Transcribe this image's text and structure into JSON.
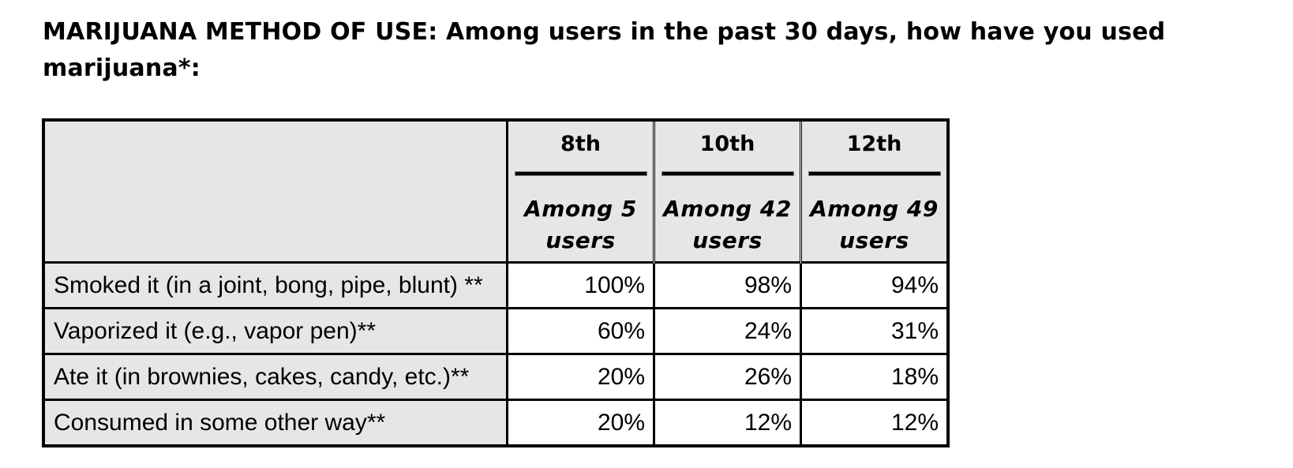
{
  "title": "MARIJUANA METHOD OF USE: Among users in the past 30 days, how have you used marijuana*:",
  "columns": [
    {
      "grade": "8th",
      "among_line1": "Among 5",
      "among_line2": "users"
    },
    {
      "grade": "10th",
      "among_line1": "Among 42",
      "among_line2": "users"
    },
    {
      "grade": "12th",
      "among_line1": "Among 49",
      "among_line2": "users"
    }
  ],
  "rows": [
    {
      "label": "Smoked it (in a joint, bong, pipe, blunt) **",
      "values": [
        "100%",
        "98%",
        "94%"
      ]
    },
    {
      "label": "Vaporized it (e.g., vapor pen)**",
      "values": [
        "60%",
        "24%",
        "31%"
      ]
    },
    {
      "label": "Ate it (in brownies, cakes, candy, etc.)**",
      "values": [
        "20%",
        "26%",
        "18%"
      ]
    },
    {
      "label": "Consumed in some other way**",
      "values": [
        "20%",
        "12%",
        "12%"
      ]
    }
  ],
  "chart_data": {
    "type": "table",
    "title": "MARIJUANA METHOD OF USE: Among users in the past 30 days, how have you used marijuana*:",
    "categories": [
      "Smoked it (in a joint, bong, pipe, blunt) **",
      "Vaporized it (e.g., vapor pen)**",
      "Ate it (in brownies, cakes, candy, etc.)**",
      "Consumed in some other way**"
    ],
    "series": [
      {
        "name": "8th",
        "values": [
          100,
          60,
          20,
          20
        ]
      },
      {
        "name": "10th",
        "values": [
          98,
          24,
          26,
          12
        ]
      },
      {
        "name": "12th",
        "values": [
          94,
          31,
          18,
          12
        ]
      }
    ]
  }
}
